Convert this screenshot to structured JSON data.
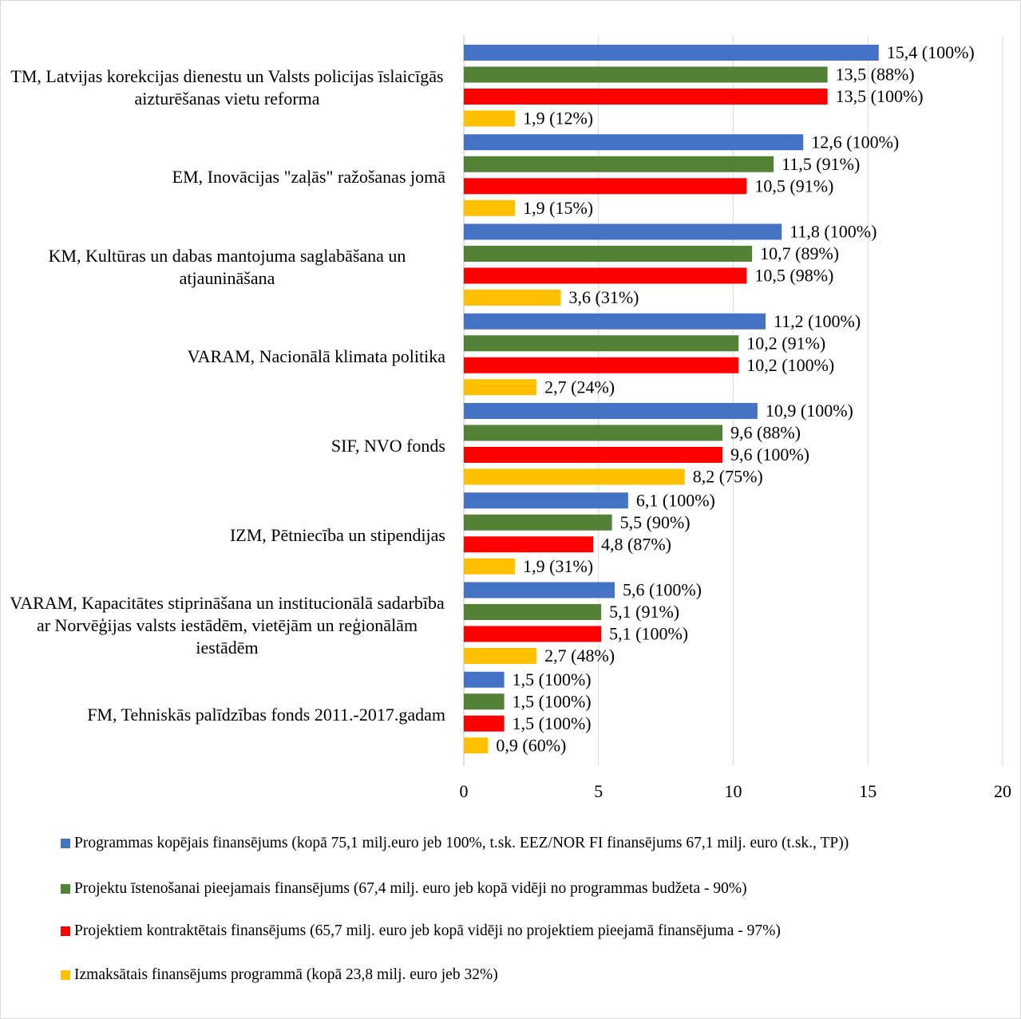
{
  "chart_data": {
    "type": "barh",
    "categories": [
      "TM, Latvijas korekcijas dienestu un Valsts policijas īslaicīgās aizturēšanas vietu reforma",
      "EM, Inovācijas \"zaļās\" ražošanas jomā",
      "KM, Kultūras un dabas mantojuma saglabāšana un atjaunināšana",
      "VARAM, Nacionālā klimata politika",
      "SIF, NVO fonds",
      "IZM, Pētniecība un stipendijas",
      "VARAM, Kapacitātes stiprināšana un institucionālā sadarbība ar Norvēģijas valsts iestādēm, vietējām un reģionālām iestādēm",
      "FM, Tehniskās palīdzības fonds 2011.-2017.gadam"
    ],
    "series": [
      {
        "name": "Programmas kopējais finansējums (kopā 75,1  milj.euro jeb 100%, t.sk. EEZ/NOR FI finansējums 67,1 milj. euro (t.sk., TP))",
        "color": "#4472c4",
        "values": [
          15.4,
          12.6,
          11.8,
          11.2,
          10.9,
          6.1,
          5.6,
          1.5
        ],
        "value_labels": [
          "15,4 (100%)",
          "12,6 (100%)",
          "11,8 (100%)",
          "11,2 (100%)",
          "10,9 (100%)",
          "6,1 (100%)",
          "5,6 (100%)",
          "1,5 (100%)"
        ]
      },
      {
        "name": "Projektu īstenošanai pieejamais finansējums (67,4 milj. euro jeb kopā vidēji no programmas budžeta - 90%)",
        "color": "#538135",
        "values": [
          13.5,
          11.5,
          10.7,
          10.2,
          9.6,
          5.5,
          5.1,
          1.5
        ],
        "value_labels": [
          "13,5 (88%)",
          "11,5 (91%)",
          "10,7 (89%)",
          "10,2 (91%)",
          "9,6 (88%)",
          "5,5 (90%)",
          "5,1 (91%)",
          "1,5 (100%)"
        ]
      },
      {
        "name": "Projektiem kontraktētais finansējums (65,7 milj. euro jeb kopā vidēji no projektiem pieejamā finansējuma - 97%)",
        "color": "#ff0000",
        "values": [
          13.5,
          10.5,
          10.5,
          10.2,
          9.6,
          4.8,
          5.1,
          1.5
        ],
        "value_labels": [
          "13,5 (100%)",
          "10,5 (91%)",
          "10,5 (98%)",
          "10,2 (100%)",
          "9,6 (100%)",
          "4,8 (87%)",
          "5,1 (100%)",
          "1,5 (100%)"
        ]
      },
      {
        "name": "Izmaksātais finansējums programmā (kopā 23,8 milj. euro jeb 32%)",
        "color": "#ffc000",
        "values": [
          1.9,
          1.9,
          3.6,
          2.7,
          8.2,
          1.9,
          2.7,
          0.9
        ],
        "value_labels": [
          "1,9 (12%)",
          "1,9 (15%)",
          "3,6 (31%)",
          "2,7 (24%)",
          "8,2 (75%)",
          "1,9 (31%)",
          "2,7 (48%)",
          "0,9 (60%)"
        ]
      }
    ],
    "xlim": [
      0,
      20
    ],
    "xticks": [
      0,
      5,
      10,
      15,
      20
    ],
    "grid": true,
    "legend": "bottom"
  }
}
